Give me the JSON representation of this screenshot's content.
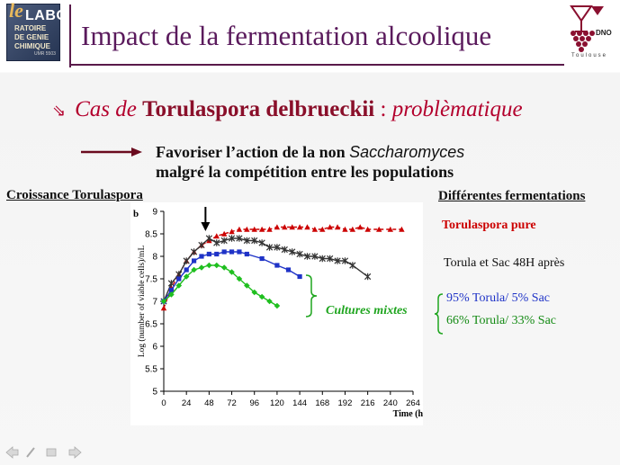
{
  "header": {
    "title": "Impact de la fermentation alcoolique",
    "logo_left": {
      "le": "le",
      "labo": "LABO",
      "line1": "RATOIRE",
      "line2": "DE GENIE",
      "line3": "CHIMIQUE",
      "small": "UMR 5503"
    },
    "logo_right": {
      "mark": "DNO",
      "city": "Toulouse"
    }
  },
  "subtitle": {
    "prefix": "Cas de",
    "species": "Torulaspora delbrueckii",
    "separator": " : ",
    "qualifier": "problèmatique"
  },
  "bullet": {
    "line1_a": "Favoriser l’action de la non ",
    "line1_b": "Saccharomyces",
    "line2": "malgré la compétition entre les populations"
  },
  "left_heading": "Croissance Torulaspora",
  "right_heading": "Différentes fermentations",
  "legend": {
    "pure": "Torulaspora pure",
    "after48": "Torula et Sac 48H après",
    "p95": "95% Torula/ 5% Sac",
    "p66": "66% Torula/ 33% Sac"
  },
  "annotation": "Cultures mixtes",
  "colors": {
    "title": "#5a1a5c",
    "subtitle": "#b3002d",
    "pure": "#cc0000",
    "after48": "#333333",
    "p95": "#1f33c7",
    "p66": "#1fbf1f",
    "annotation": "#1fa51f"
  },
  "chart_data": {
    "type": "line",
    "panel_label": "b",
    "xlabel": "Time (h)",
    "ylabel": "Log (number of viable cells)/mL",
    "xlim": [
      0,
      264
    ],
    "ylim": [
      5,
      9
    ],
    "xticks": [
      0,
      24,
      48,
      72,
      96,
      120,
      144,
      168,
      192,
      216,
      240,
      264
    ],
    "yticks": [
      5,
      5.5,
      6,
      6.5,
      7,
      7.5,
      8,
      8.5,
      9
    ],
    "arrow_at_x": 48,
    "series": [
      {
        "name": "Torulaspora pure",
        "marker": "triangle",
        "line": "dashed",
        "x": [
          0,
          8,
          16,
          24,
          32,
          40,
          48,
          56,
          64,
          72,
          80,
          88,
          96,
          104,
          112,
          120,
          128,
          136,
          144,
          152,
          160,
          168,
          176,
          184,
          192,
          200,
          208,
          216,
          228,
          240,
          252
        ],
        "y": [
          6.85,
          7.3,
          7.6,
          7.9,
          8.1,
          8.25,
          8.35,
          8.45,
          8.5,
          8.55,
          8.6,
          8.6,
          8.6,
          8.6,
          8.6,
          8.65,
          8.65,
          8.65,
          8.65,
          8.65,
          8.6,
          8.6,
          8.65,
          8.65,
          8.6,
          8.6,
          8.65,
          8.6,
          8.6,
          8.6,
          8.6
        ]
      },
      {
        "name": "Torula et Sac 48H après",
        "marker": "star",
        "line": "solid",
        "x": [
          0,
          8,
          16,
          24,
          32,
          40,
          48,
          56,
          64,
          72,
          80,
          88,
          96,
          104,
          112,
          120,
          128,
          136,
          144,
          152,
          160,
          168,
          176,
          184,
          192,
          200,
          216
        ],
        "y": [
          7.0,
          7.4,
          7.6,
          7.9,
          8.1,
          8.25,
          8.4,
          8.3,
          8.35,
          8.4,
          8.4,
          8.35,
          8.35,
          8.3,
          8.2,
          8.2,
          8.15,
          8.1,
          8.05,
          8.0,
          8.0,
          7.95,
          7.95,
          7.9,
          7.9,
          7.8,
          7.55
        ]
      },
      {
        "name": "95% Torula/ 5% Sac",
        "marker": "square",
        "line": "solid",
        "x": [
          0,
          8,
          16,
          24,
          32,
          40,
          48,
          56,
          64,
          72,
          80,
          88,
          104,
          120,
          132,
          144
        ],
        "y": [
          7.0,
          7.25,
          7.5,
          7.7,
          7.9,
          8.0,
          8.05,
          8.05,
          8.1,
          8.1,
          8.1,
          8.05,
          7.95,
          7.8,
          7.7,
          7.55
        ]
      },
      {
        "name": "66% Torula/ 33% Sac",
        "marker": "diamond",
        "line": "solid",
        "x": [
          0,
          8,
          16,
          24,
          32,
          40,
          48,
          56,
          64,
          72,
          80,
          88,
          96,
          104,
          112,
          120
        ],
        "y": [
          7.0,
          7.15,
          7.35,
          7.55,
          7.7,
          7.75,
          7.8,
          7.8,
          7.75,
          7.65,
          7.5,
          7.35,
          7.2,
          7.1,
          7.0,
          6.9
        ]
      }
    ]
  },
  "nav_icons": [
    "back-arrow-icon",
    "pen-icon",
    "slide-menu-icon",
    "forward-arrow-icon"
  ]
}
